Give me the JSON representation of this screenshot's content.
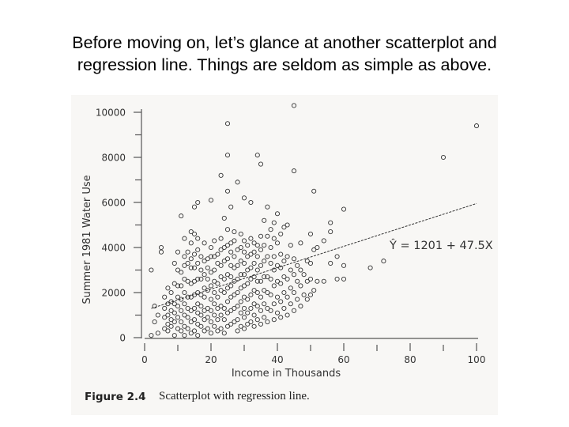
{
  "slide": {
    "title_line1": "Before moving on, let’s glance at another scatterplot and",
    "title_line2": "regression line.  Things are seldom as simple as above."
  },
  "figure": {
    "label": "Figure 2.4",
    "caption": "Scatterplot with regression line."
  },
  "chart_data": {
    "type": "scatter",
    "title": "",
    "xlabel": "Income in Thousands",
    "ylabel": "Summer 1981 Water Use",
    "xlim": [
      0,
      100
    ],
    "ylim": [
      0,
      10000
    ],
    "x_ticks": [
      0,
      20,
      40,
      60,
      80,
      100
    ],
    "y_ticks": [
      0,
      2000,
      4000,
      6000,
      8000,
      10000
    ],
    "equation_label": "Ŷ = 1201 + 47.5X",
    "regression": {
      "intercept": 1201,
      "slope": 47.5,
      "x_range": [
        2,
        100
      ]
    },
    "points": [
      [
        2,
        100
      ],
      [
        2,
        3000
      ],
      [
        3,
        700
      ],
      [
        3,
        1400
      ],
      [
        4,
        200
      ],
      [
        4,
        1000
      ],
      [
        5,
        3800
      ],
      [
        5,
        4000
      ],
      [
        6,
        400
      ],
      [
        6,
        900
      ],
      [
        6,
        1300
      ],
      [
        6,
        1800
      ],
      [
        7,
        300
      ],
      [
        7,
        600
      ],
      [
        7,
        1000
      ],
      [
        7,
        1500
      ],
      [
        7,
        2200
      ],
      [
        8,
        500
      ],
      [
        8,
        800
      ],
      [
        8,
        1200
      ],
      [
        8,
        1600
      ],
      [
        8,
        2000
      ],
      [
        9,
        100
      ],
      [
        9,
        700
      ],
      [
        9,
        1100
      ],
      [
        9,
        1500
      ],
      [
        9,
        2400
      ],
      [
        9,
        3300
      ],
      [
        10,
        400
      ],
      [
        10,
        900
      ],
      [
        10,
        1400
      ],
      [
        10,
        1800
      ],
      [
        10,
        2300
      ],
      [
        10,
        3000
      ],
      [
        10,
        3800
      ],
      [
        11,
        300
      ],
      [
        11,
        700
      ],
      [
        11,
        1200
      ],
      [
        11,
        1700
      ],
      [
        11,
        2300
      ],
      [
        11,
        2900
      ],
      [
        11,
        5400
      ],
      [
        12,
        100
      ],
      [
        12,
        500
      ],
      [
        12,
        1000
      ],
      [
        12,
        1500
      ],
      [
        12,
        2000
      ],
      [
        12,
        2600
      ],
      [
        12,
        3200
      ],
      [
        12,
        3600
      ],
      [
        12,
        4400
      ],
      [
        13,
        400
      ],
      [
        13,
        900
      ],
      [
        13,
        1300
      ],
      [
        13,
        1800
      ],
      [
        13,
        2500
      ],
      [
        13,
        3300
      ],
      [
        13,
        3800
      ],
      [
        14,
        200
      ],
      [
        14,
        700
      ],
      [
        14,
        1200
      ],
      [
        14,
        1800
      ],
      [
        14,
        2400
      ],
      [
        14,
        3100
      ],
      [
        14,
        3500
      ],
      [
        14,
        4200
      ],
      [
        14,
        4700
      ],
      [
        15,
        300
      ],
      [
        15,
        800
      ],
      [
        15,
        1300
      ],
      [
        15,
        1900
      ],
      [
        15,
        2500
      ],
      [
        15,
        3100
      ],
      [
        15,
        3700
      ],
      [
        15,
        4600
      ],
      [
        15,
        5800
      ],
      [
        16,
        100
      ],
      [
        16,
        600
      ],
      [
        16,
        1100
      ],
      [
        16,
        1500
      ],
      [
        16,
        2000
      ],
      [
        16,
        2600
      ],
      [
        16,
        3300
      ],
      [
        16,
        3900
      ],
      [
        16,
        4400
      ],
      [
        16,
        6000
      ],
      [
        17,
        500
      ],
      [
        17,
        1000
      ],
      [
        17,
        1400
      ],
      [
        17,
        1900
      ],
      [
        17,
        2600
      ],
      [
        17,
        3000
      ],
      [
        17,
        3600
      ],
      [
        18,
        300
      ],
      [
        18,
        800
      ],
      [
        18,
        1200
      ],
      [
        18,
        1800
      ],
      [
        18,
        2200
      ],
      [
        18,
        2800
      ],
      [
        18,
        3400
      ],
      [
        18,
        4200
      ],
      [
        19,
        400
      ],
      [
        19,
        900
      ],
      [
        19,
        1300
      ],
      [
        19,
        2100
      ],
      [
        19,
        2600
      ],
      [
        19,
        3100
      ],
      [
        19,
        3500
      ],
      [
        20,
        200
      ],
      [
        20,
        700
      ],
      [
        20,
        1200
      ],
      [
        20,
        1700
      ],
      [
        20,
        2300
      ],
      [
        20,
        2900
      ],
      [
        20,
        3600
      ],
      [
        20,
        4000
      ],
      [
        20,
        6100
      ],
      [
        21,
        500
      ],
      [
        21,
        1000
      ],
      [
        21,
        1500
      ],
      [
        21,
        2000
      ],
      [
        21,
        2500
      ],
      [
        21,
        3000
      ],
      [
        21,
        3600
      ],
      [
        21,
        4300
      ],
      [
        22,
        300
      ],
      [
        22,
        800
      ],
      [
        22,
        1300
      ],
      [
        22,
        1800
      ],
      [
        22,
        2400
      ],
      [
        22,
        3300
      ],
      [
        22,
        3700
      ],
      [
        23,
        400
      ],
      [
        23,
        1000
      ],
      [
        23,
        1400
      ],
      [
        23,
        2100
      ],
      [
        23,
        2700
      ],
      [
        23,
        3200
      ],
      [
        23,
        3900
      ],
      [
        23,
        4400
      ],
      [
        23,
        7200
      ],
      [
        24,
        200
      ],
      [
        24,
        800
      ],
      [
        24,
        1300
      ],
      [
        24,
        2000
      ],
      [
        24,
        2600
      ],
      [
        24,
        3400
      ],
      [
        24,
        4000
      ],
      [
        24,
        5300
      ],
      [
        25,
        500
      ],
      [
        25,
        1100
      ],
      [
        25,
        1600
      ],
      [
        25,
        2200
      ],
      [
        25,
        2800
      ],
      [
        25,
        3500
      ],
      [
        25,
        4100
      ],
      [
        25,
        4800
      ],
      [
        25,
        6500
      ],
      [
        25,
        8100
      ],
      [
        25,
        9500
      ],
      [
        26,
        600
      ],
      [
        26,
        1200
      ],
      [
        26,
        1800
      ],
      [
        26,
        2300
      ],
      [
        26,
        2700
      ],
      [
        26,
        3200
      ],
      [
        26,
        3800
      ],
      [
        26,
        4200
      ],
      [
        26,
        5800
      ],
      [
        27,
        700
      ],
      [
        27,
        1300
      ],
      [
        27,
        1900
      ],
      [
        27,
        2500
      ],
      [
        27,
        3100
      ],
      [
        27,
        3600
      ],
      [
        27,
        4300
      ],
      [
        27,
        4700
      ],
      [
        28,
        300
      ],
      [
        28,
        800
      ],
      [
        28,
        1400
      ],
      [
        28,
        2000
      ],
      [
        28,
        2600
      ],
      [
        28,
        3200
      ],
      [
        28,
        3900
      ],
      [
        28,
        6900
      ],
      [
        29,
        500
      ],
      [
        29,
        1100
      ],
      [
        29,
        1600
      ],
      [
        29,
        2200
      ],
      [
        29,
        2800
      ],
      [
        29,
        3400
      ],
      [
        29,
        4000
      ],
      [
        29,
        4600
      ],
      [
        30,
        400
      ],
      [
        30,
        900
      ],
      [
        30,
        1300
      ],
      [
        30,
        1800
      ],
      [
        30,
        2300
      ],
      [
        30,
        2800
      ],
      [
        30,
        3300
      ],
      [
        30,
        3800
      ],
      [
        30,
        4300
      ],
      [
        30,
        6200
      ],
      [
        31,
        600
      ],
      [
        31,
        1100
      ],
      [
        31,
        1700
      ],
      [
        31,
        2400
      ],
      [
        31,
        3000
      ],
      [
        31,
        3600
      ],
      [
        31,
        4100
      ],
      [
        32,
        700
      ],
      [
        32,
        1300
      ],
      [
        32,
        1900
      ],
      [
        32,
        2600
      ],
      [
        32,
        3100
      ],
      [
        32,
        3700
      ],
      [
        32,
        4400
      ],
      [
        32,
        6000
      ],
      [
        33,
        500
      ],
      [
        33,
        1000
      ],
      [
        33,
        1500
      ],
      [
        33,
        2100
      ],
      [
        33,
        2700
      ],
      [
        33,
        3300
      ],
      [
        33,
        3800
      ],
      [
        33,
        4200
      ],
      [
        34,
        800
      ],
      [
        34,
        1400
      ],
      [
        34,
        2000
      ],
      [
        34,
        2500
      ],
      [
        34,
        3000
      ],
      [
        34,
        3600
      ],
      [
        34,
        4100
      ],
      [
        34,
        8100
      ],
      [
        35,
        600
      ],
      [
        35,
        1200
      ],
      [
        35,
        1800
      ],
      [
        35,
        2500
      ],
      [
        35,
        3200
      ],
      [
        35,
        3900
      ],
      [
        35,
        4500
      ],
      [
        35,
        7700
      ],
      [
        36,
        900
      ],
      [
        36,
        1500
      ],
      [
        36,
        2100
      ],
      [
        36,
        2700
      ],
      [
        36,
        3400
      ],
      [
        36,
        4100
      ],
      [
        36,
        5200
      ],
      [
        37,
        700
      ],
      [
        37,
        1300
      ],
      [
        37,
        2000
      ],
      [
        37,
        2700
      ],
      [
        37,
        3600
      ],
      [
        37,
        4500
      ],
      [
        37,
        5800
      ],
      [
        38,
        1200
      ],
      [
        38,
        1900
      ],
      [
        38,
        2600
      ],
      [
        38,
        3300
      ],
      [
        38,
        4000
      ],
      [
        38,
        4800
      ],
      [
        39,
        800
      ],
      [
        39,
        1500
      ],
      [
        39,
        2300
      ],
      [
        39,
        3000
      ],
      [
        39,
        3600
      ],
      [
        39,
        4400
      ],
      [
        39,
        5100
      ],
      [
        40,
        1100
      ],
      [
        40,
        1800
      ],
      [
        40,
        2500
      ],
      [
        40,
        3200
      ],
      [
        40,
        4200
      ],
      [
        40,
        5500
      ],
      [
        41,
        900
      ],
      [
        41,
        1600
      ],
      [
        41,
        2400
      ],
      [
        41,
        3100
      ],
      [
        41,
        3700
      ],
      [
        41,
        4600
      ],
      [
        42,
        1300
      ],
      [
        42,
        2000
      ],
      [
        42,
        2700
      ],
      [
        42,
        3400
      ],
      [
        42,
        4900
      ],
      [
        43,
        1000
      ],
      [
        43,
        1800
      ],
      [
        43,
        2600
      ],
      [
        43,
        3600
      ],
      [
        43,
        5000
      ],
      [
        44,
        1500
      ],
      [
        44,
        2200
      ],
      [
        44,
        3000
      ],
      [
        44,
        4100
      ],
      [
        45,
        1200
      ],
      [
        45,
        2000
      ],
      [
        45,
        2800
      ],
      [
        45,
        3500
      ],
      [
        45,
        7400
      ],
      [
        45,
        10300
      ],
      [
        46,
        1700
      ],
      [
        46,
        2500
      ],
      [
        46,
        3200
      ],
      [
        47,
        1400
      ],
      [
        47,
        2300
      ],
      [
        47,
        3000
      ],
      [
        47,
        4200
      ],
      [
        48,
        1900
      ],
      [
        48,
        2800
      ],
      [
        49,
        1700
      ],
      [
        49,
        2500
      ],
      [
        49,
        3400
      ],
      [
        50,
        1900
      ],
      [
        50,
        2600
      ],
      [
        50,
        3300
      ],
      [
        50,
        4600
      ],
      [
        51,
        2100
      ],
      [
        51,
        3900
      ],
      [
        51,
        6500
      ],
      [
        52,
        2500
      ],
      [
        52,
        4000
      ],
      [
        54,
        2500
      ],
      [
        54,
        4300
      ],
      [
        56,
        3300
      ],
      [
        56,
        4700
      ],
      [
        56,
        5100
      ],
      [
        58,
        2600
      ],
      [
        58,
        3600
      ],
      [
        60,
        2600
      ],
      [
        60,
        3200
      ],
      [
        60,
        5700
      ],
      [
        68,
        3100
      ],
      [
        72,
        3400
      ],
      [
        90,
        8000
      ],
      [
        100,
        9400
      ]
    ]
  }
}
